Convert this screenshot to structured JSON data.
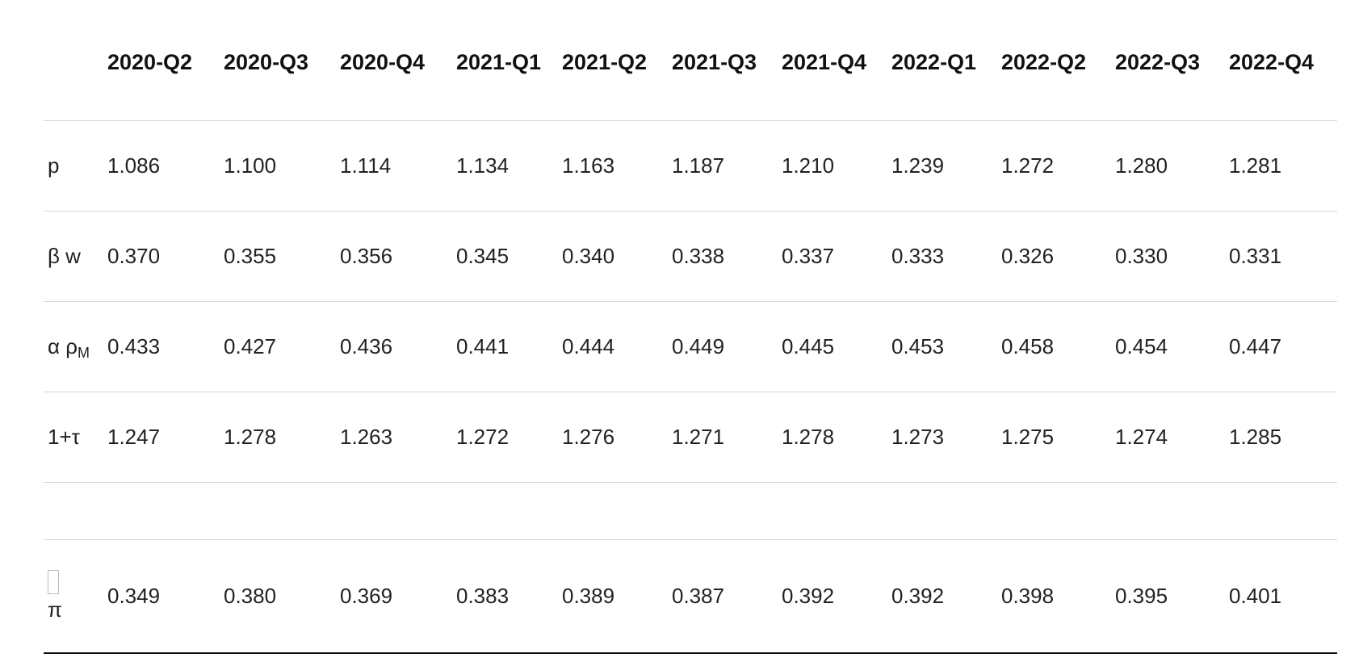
{
  "columns": [
    "2020-Q2",
    "2020-Q3",
    "2020-Q4",
    "2021-Q1",
    "2021-Q2",
    "2021-Q3",
    "2021-Q4",
    "2022-Q1",
    "2022-Q2",
    "2022-Q3",
    "2022-Q4"
  ],
  "rows": [
    {
      "label": "p",
      "values": [
        "1.086",
        "1.100",
        "1.114",
        "1.134",
        "1.163",
        "1.187",
        "1.210",
        "1.239",
        "1.272",
        "1.280",
        "1.281"
      ]
    },
    {
      "label": "β w",
      "values": [
        "0.370",
        "0.355",
        "0.356",
        "0.345",
        "0.340",
        "0.338",
        "0.337",
        "0.333",
        "0.326",
        "0.330",
        "0.331"
      ]
    },
    {
      "label_main": "α ρ",
      "label_sub": "M",
      "values": [
        "0.433",
        "0.427",
        "0.436",
        "0.441",
        "0.444",
        "0.449",
        "0.445",
        "0.453",
        "0.458",
        "0.454",
        "0.447"
      ]
    },
    {
      "label": "1+τ",
      "values": [
        "1.247",
        "1.278",
        "1.263",
        "1.272",
        "1.276",
        "1.271",
        "1.278",
        "1.273",
        "1.275",
        "1.274",
        "1.285"
      ]
    },
    {
      "label": "π",
      "values": [
        "0.349",
        "0.380",
        "0.369",
        "0.383",
        "0.389",
        "0.387",
        "0.392",
        "0.392",
        "0.398",
        "0.395",
        "0.401"
      ]
    }
  ]
}
